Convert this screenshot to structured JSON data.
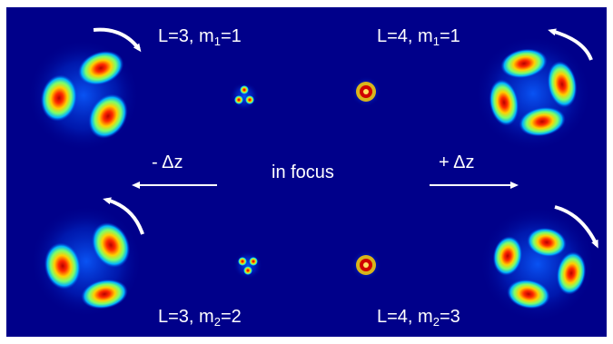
{
  "labels": {
    "top_left": {
      "prefix": "L=3, m",
      "sub": "1",
      "suffix": "=1"
    },
    "top_right": {
      "prefix": "L=4, m",
      "sub": "1",
      "suffix": "=1"
    },
    "bottom_left": {
      "prefix": "L=3, m",
      "sub": "2",
      "suffix": "=2"
    },
    "bottom_right": {
      "prefix": "L=4, m",
      "sub": "2",
      "suffix": "=3"
    },
    "minus_dz": "- Δz",
    "plus_dz": "+ Δz",
    "in_focus": "in focus"
  },
  "colors": {
    "background": "#00008a",
    "text": "#ffffff",
    "lobe_core": "#c80000",
    "lobe_mid": "#ffd000",
    "lobe_outer": "#00c8ff"
  }
}
